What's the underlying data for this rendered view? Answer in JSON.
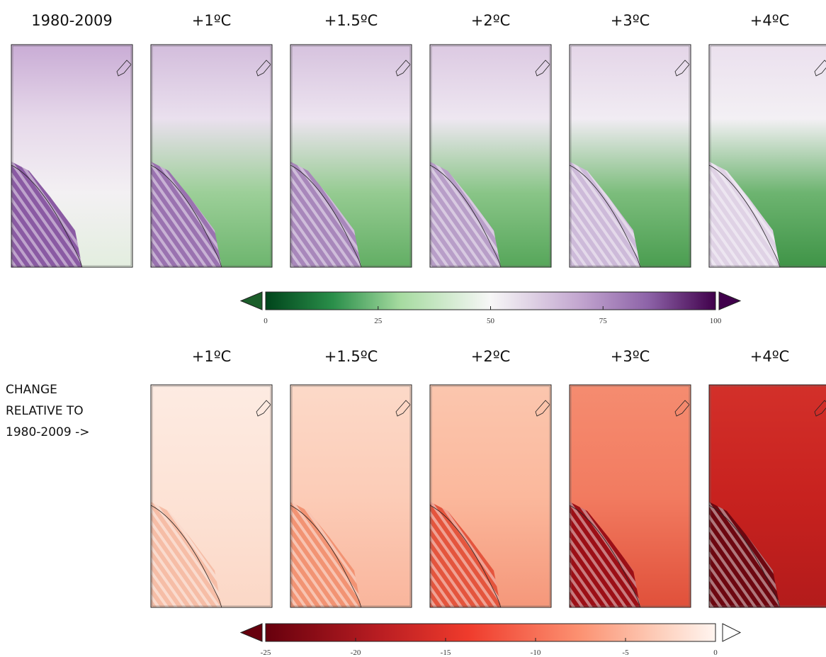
{
  "top_row": {
    "titles": [
      "1980-2009",
      "+1ºC",
      "+1.5ºC",
      "+2ºC",
      "+3ºC",
      "+4ºC"
    ]
  },
  "top_colorbar": {
    "lim": [
      0,
      100
    ],
    "ticks": [
      0,
      25,
      50,
      75,
      100
    ]
  },
  "bottom_row": {
    "side_label": [
      "CHANGE",
      "RELATIVE TO",
      "1980-2009 ->"
    ],
    "titles": [
      "+1ºC",
      "+1.5ºC",
      "+2ºC",
      "+3ºC",
      "+4ºC"
    ]
  },
  "bottom_colorbar": {
    "lim": [
      -25,
      0
    ],
    "ticks": [
      -25,
      -20,
      -15,
      -10,
      -5,
      0
    ]
  }
}
